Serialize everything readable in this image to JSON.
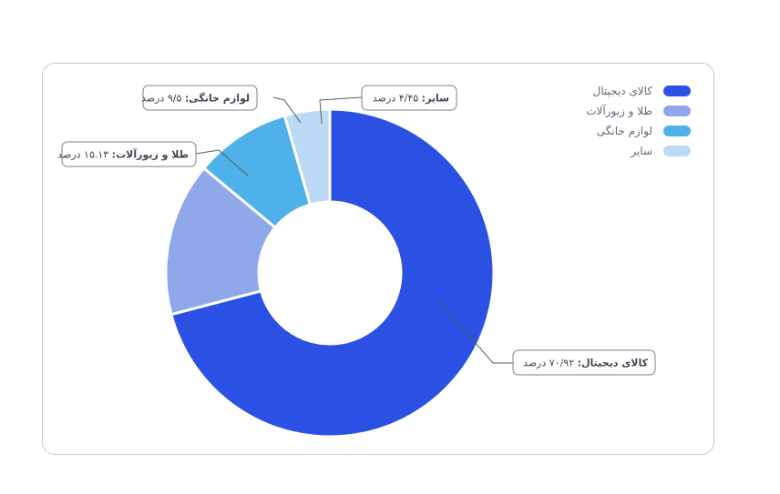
{
  "chart_data": {
    "type": "pie",
    "donut": true,
    "title": "",
    "legend_position": "top-right",
    "slices": [
      {
        "label": "کالای دیجیتال",
        "value": 70.92,
        "value_text": "۷۰/۹۲",
        "color": "#2a51e3"
      },
      {
        "label": "طلا و زیورآلات",
        "value": 15.13,
        "value_text": "۱۵.۱۳",
        "color": "#8ea8ea"
      },
      {
        "label": "لوازم خانگی",
        "value": 9.5,
        "value_text": "۹/۵",
        "color": "#4fb1e9"
      },
      {
        "label": "سایر",
        "value": 4.45,
        "value_text": "۴/۴۵",
        "color": "#bcdaf6"
      }
    ],
    "unit": "درصد"
  }
}
